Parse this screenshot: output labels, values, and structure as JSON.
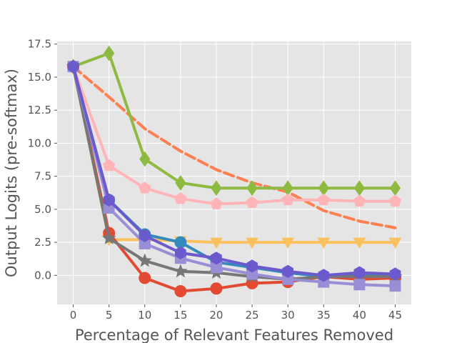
{
  "chart_data": {
    "type": "line",
    "title": "",
    "xlabel": "Percentage of Relevant Features Removed",
    "ylabel": "Output Logits (pre-softmax)",
    "x": [
      0,
      5,
      10,
      15,
      20,
      25,
      30,
      35,
      40,
      45
    ],
    "xlim": [
      -2.25,
      47.25
    ],
    "ylim": [
      -2.2,
      17.7
    ],
    "xticks": [
      0,
      5,
      10,
      15,
      20,
      25,
      30,
      35,
      40,
      45
    ],
    "yticks": [
      0.0,
      2.5,
      5.0,
      7.5,
      10.0,
      12.5,
      15.0,
      17.5
    ],
    "ytick_labels": [
      "0.0",
      "2.5",
      "5.0",
      "7.5",
      "10.0",
      "12.5",
      "15.0",
      "17.5"
    ],
    "background": "#e5e5e5",
    "grid": true,
    "legend": "none",
    "series": [
      {
        "color": "#ff7f50",
        "linestyle": "dashed",
        "marker": "none",
        "values": [
          15.8,
          13.5,
          11.1,
          9.4,
          8.0,
          7.0,
          6.3,
          4.9,
          4.1,
          3.6
        ]
      },
      {
        "color": "#8eba42",
        "linestyle": "solid",
        "marker": "diamond",
        "values": [
          15.8,
          16.8,
          8.8,
          7.0,
          6.6,
          6.6,
          6.6,
          6.6,
          6.6,
          6.6
        ]
      },
      {
        "color": "#ffb5b8",
        "linestyle": "solid",
        "marker": "pentagon",
        "values": [
          15.8,
          8.3,
          6.6,
          5.8,
          5.4,
          5.5,
          5.7,
          5.7,
          5.6,
          5.6
        ]
      },
      {
        "color": "#fbc15e",
        "linestyle": "solid",
        "marker": "triangle-down",
        "values": [
          15.8,
          2.7,
          2.7,
          2.6,
          2.5,
          2.5,
          2.5,
          2.5,
          2.5,
          2.5
        ]
      },
      {
        "color": "#348abd",
        "linestyle": "solid",
        "marker": "circle",
        "values": [
          15.8,
          5.7,
          3.1,
          2.5,
          1.0,
          0.6,
          0.2,
          -0.1,
          0.0,
          -0.1
        ]
      },
      {
        "color": "#e24a33",
        "linestyle": "solid",
        "marker": "circle",
        "values": [
          15.8,
          3.2,
          -0.2,
          -1.2,
          -1.0,
          -0.6,
          -0.5,
          -0.1,
          -0.3,
          -0.2
        ]
      },
      {
        "color": "#777777",
        "linestyle": "solid",
        "marker": "star",
        "values": [
          15.8,
          2.8,
          1.1,
          0.3,
          0.2,
          -0.1,
          -0.3,
          -0.1,
          -0.1,
          -0.1
        ]
      },
      {
        "color": "#988ed5",
        "linestyle": "solid",
        "marker": "square",
        "values": [
          15.8,
          5.1,
          2.4,
          1.3,
          0.6,
          0.1,
          -0.3,
          -0.5,
          -0.7,
          -0.8
        ]
      },
      {
        "color": "#6a5acd",
        "linestyle": "solid",
        "marker": "hexagon",
        "values": [
          15.8,
          5.7,
          3.0,
          1.7,
          1.3,
          0.7,
          0.3,
          0.0,
          0.2,
          0.1
        ]
      }
    ]
  }
}
